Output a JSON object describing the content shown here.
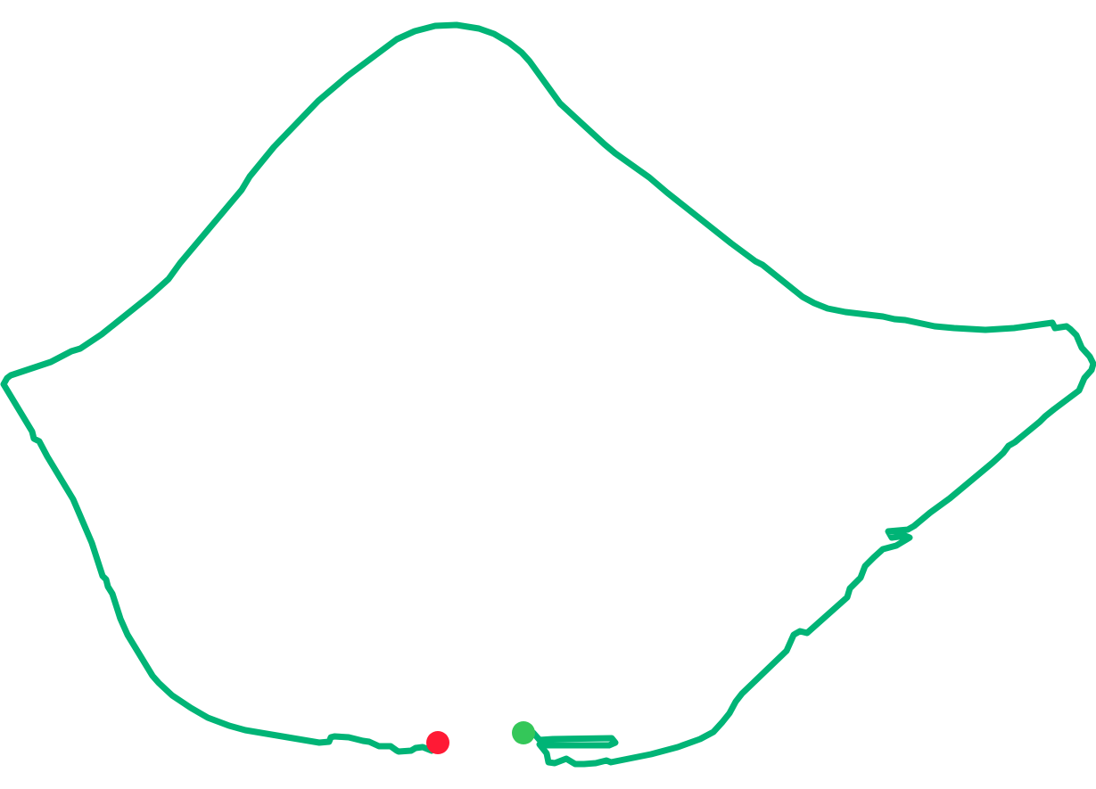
{
  "map": {
    "route_color": "#00b476",
    "start_marker": {
      "label": "start",
      "color": "#34c759"
    },
    "end_marker": {
      "label": "end",
      "color": "#ff1a35"
    }
  }
}
